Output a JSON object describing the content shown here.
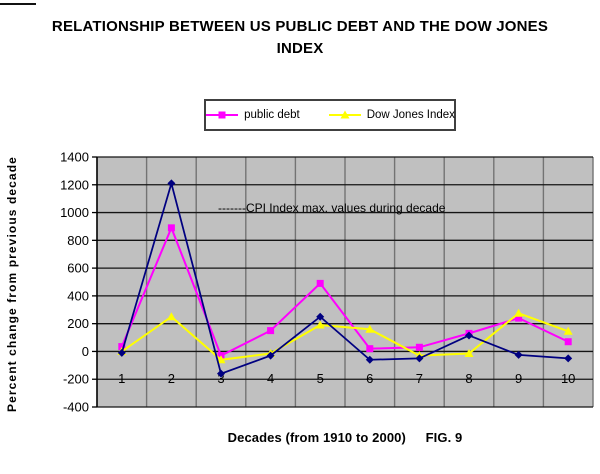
{
  "chart_data": {
    "type": "line",
    "title": "RELATIONSHIP BETWEEN US PUBLIC DEBT AND THE DOW JONES INDEX",
    "xlabel": "Decades (from 1910 to 2000)",
    "fig_label": "FIG. 9",
    "ylabel": "Percent change from previous decade",
    "annotation": "-------CPI Index max. values during decade",
    "categories": [
      "1",
      "2",
      "3",
      "4",
      "5",
      "6",
      "7",
      "8",
      "9",
      "10"
    ],
    "series": [
      {
        "name": "public debt",
        "color": "#FF00FF",
        "marker": "square",
        "in_legend": true,
        "values": [
          35,
          890,
          -30,
          150,
          490,
          20,
          30,
          130,
          240,
          70
        ]
      },
      {
        "name": "Dow Jones Index",
        "color": "#FFFF00",
        "marker": "triangle",
        "in_legend": true,
        "values": [
          0,
          250,
          -60,
          -15,
          190,
          160,
          -30,
          -15,
          275,
          145
        ]
      },
      {
        "name": "CPI Index",
        "color": "#000080",
        "marker": "diamond",
        "in_legend": false,
        "values": [
          -10,
          1210,
          -160,
          -30,
          250,
          -60,
          -50,
          115,
          -25,
          -50
        ]
      }
    ],
    "ylim": [
      -400,
      1400
    ],
    "ytick_step": 200,
    "grid": true,
    "legend_position": "top-center",
    "colors": {
      "plot_bg": "#C0C0C0",
      "h_gridline": "#141414",
      "v_gridline": "#737373",
      "axis": "#000000",
      "text": "#000000"
    }
  }
}
